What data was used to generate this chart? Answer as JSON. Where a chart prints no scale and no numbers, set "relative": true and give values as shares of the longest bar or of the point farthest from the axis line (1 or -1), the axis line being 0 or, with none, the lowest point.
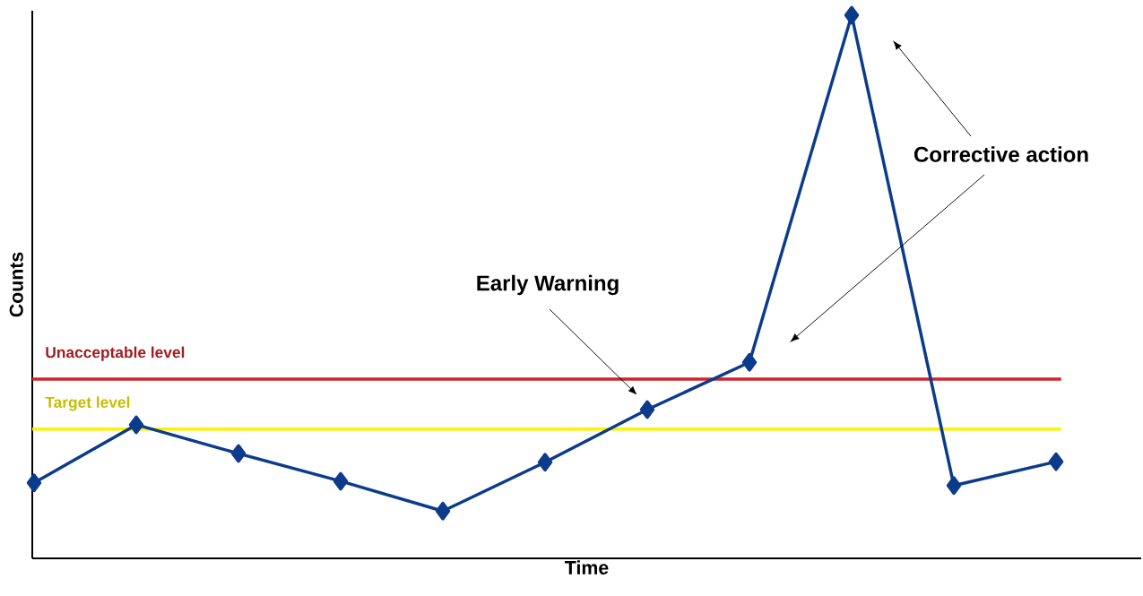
{
  "chart_data": {
    "type": "line",
    "relative": true,
    "xlabel": "Time",
    "ylabel": "Counts",
    "categories": [
      null,
      null,
      null,
      null,
      null,
      null,
      null,
      null,
      null,
      null,
      null
    ],
    "series": [
      {
        "color": "#0d3b8c",
        "values": [
          0.139,
          0.246,
          0.193,
          0.142,
          0.087,
          0.177,
          0.274,
          0.361,
          1,
          0.134,
          0.178
        ]
      }
    ],
    "marker": "diamond",
    "line_style": "solid",
    "ref_lines": [
      {
        "axis": "y",
        "value": 0.33,
        "label": "Unacceptable level",
        "color": "#d1232a"
      },
      {
        "axis": "y",
        "value": 0.238,
        "label": "Target level",
        "color": "#fff200"
      }
    ],
    "annotations": [
      "Early Warning",
      "Corrective action"
    ]
  }
}
